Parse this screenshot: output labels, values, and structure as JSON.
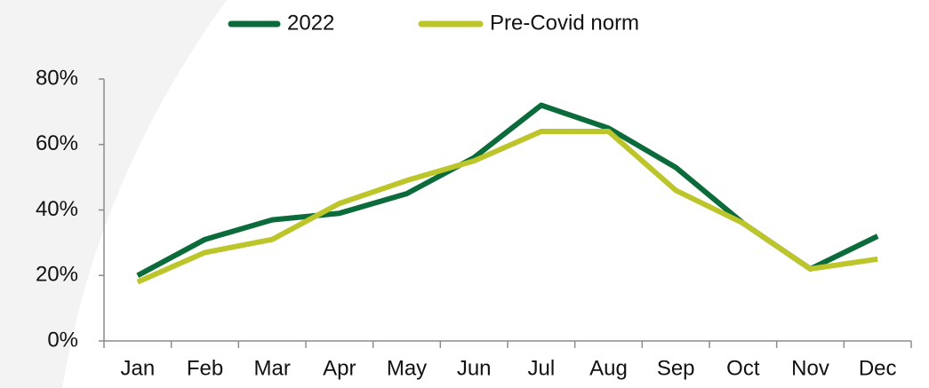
{
  "chart_data": {
    "type": "line",
    "categories": [
      "Jan",
      "Feb",
      "Mar",
      "Apr",
      "May",
      "Jun",
      "Jul",
      "Aug",
      "Sep",
      "Oct",
      "Nov",
      "Dec"
    ],
    "series": [
      {
        "name": "2022",
        "color": "#0b6b3a",
        "values": [
          20,
          31,
          37,
          39,
          45,
          56,
          72,
          65,
          53,
          36,
          22,
          32
        ]
      },
      {
        "name": "Pre-Covid norm",
        "color": "#bcc62a",
        "values": [
          18,
          27,
          31,
          42,
          49,
          55,
          64,
          64,
          46,
          36,
          22,
          25
        ]
      }
    ],
    "ylim": [
      0,
      80
    ],
    "yticks": [
      {
        "value": 0,
        "label": "0%"
      },
      {
        "value": 20,
        "label": "20%"
      },
      {
        "value": 40,
        "label": "40%"
      },
      {
        "value": 60,
        "label": "60%"
      },
      {
        "value": 80,
        "label": "80%"
      }
    ],
    "legend": "top"
  }
}
